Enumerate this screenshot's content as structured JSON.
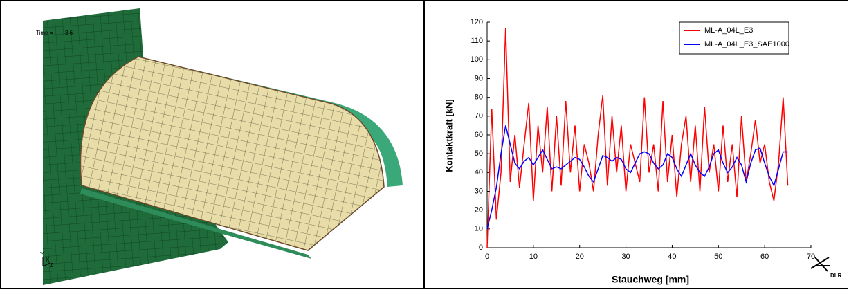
{
  "left_panel": {
    "time_label": "Time =",
    "time_value": "3.6",
    "axis_y": "Y",
    "axis_x": "X",
    "axis_z": "Z"
  },
  "chart_data": {
    "type": "line",
    "x_label": "Stauchweg [mm]",
    "y_label": "Kontaktkraft [kN]",
    "logo": "DLR",
    "x": [
      0,
      1,
      2,
      3,
      4,
      5,
      6,
      7,
      8,
      9,
      10,
      11,
      12,
      13,
      14,
      15,
      16,
      17,
      18,
      19,
      20,
      21,
      22,
      23,
      24,
      25,
      26,
      27,
      28,
      29,
      30,
      31,
      32,
      33,
      34,
      35,
      36,
      37,
      38,
      39,
      40,
      41,
      42,
      43,
      44,
      45,
      46,
      47,
      48,
      49,
      50,
      51,
      52,
      53,
      54,
      55,
      56,
      57,
      58,
      59,
      60,
      61,
      62,
      63,
      64,
      65
    ],
    "series": [
      {
        "name": "ML-A_04L_E3",
        "color": "#ff0000",
        "values": [
          0,
          74,
          15,
          40,
          117,
          35,
          60,
          32,
          55,
          77,
          25,
          65,
          40,
          75,
          30,
          70,
          33,
          78,
          40,
          65,
          30,
          55,
          45,
          30,
          60,
          81,
          33,
          70,
          40,
          65,
          30,
          55,
          45,
          35,
          80,
          40,
          55,
          30,
          78,
          35,
          60,
          27,
          55,
          70,
          35,
          65,
          30,
          75,
          40,
          55,
          30,
          65,
          35,
          55,
          27,
          70,
          35,
          50,
          68,
          45,
          55,
          35,
          25,
          45,
          80,
          33
        ]
      },
      {
        "name": "ML-A_04L_E3_SAE1000",
        "color": "#0000ff",
        "values": [
          10,
          20,
          32,
          50,
          65,
          55,
          45,
          42,
          46,
          48,
          44,
          48,
          52,
          47,
          42,
          43,
          42,
          44,
          46,
          48,
          47,
          43,
          38,
          35,
          42,
          49,
          48,
          46,
          48,
          47,
          42,
          40,
          45,
          50,
          51,
          50,
          45,
          42,
          44,
          50,
          48,
          42,
          38,
          44,
          50,
          44,
          40,
          38,
          43,
          50,
          52,
          45,
          40,
          43,
          48,
          44,
          35,
          45,
          52,
          53,
          45,
          38,
          33,
          42,
          51,
          51
        ]
      }
    ],
    "xlim": [
      0,
      70
    ],
    "xticks": [
      0,
      10,
      20,
      30,
      40,
      50,
      60,
      70
    ],
    "ylim": [
      0,
      120
    ],
    "yticks": [
      0,
      10,
      20,
      30,
      40,
      50,
      60,
      70,
      80,
      90,
      100,
      110,
      120
    ],
    "grid": false,
    "legend": "upper-right"
  }
}
